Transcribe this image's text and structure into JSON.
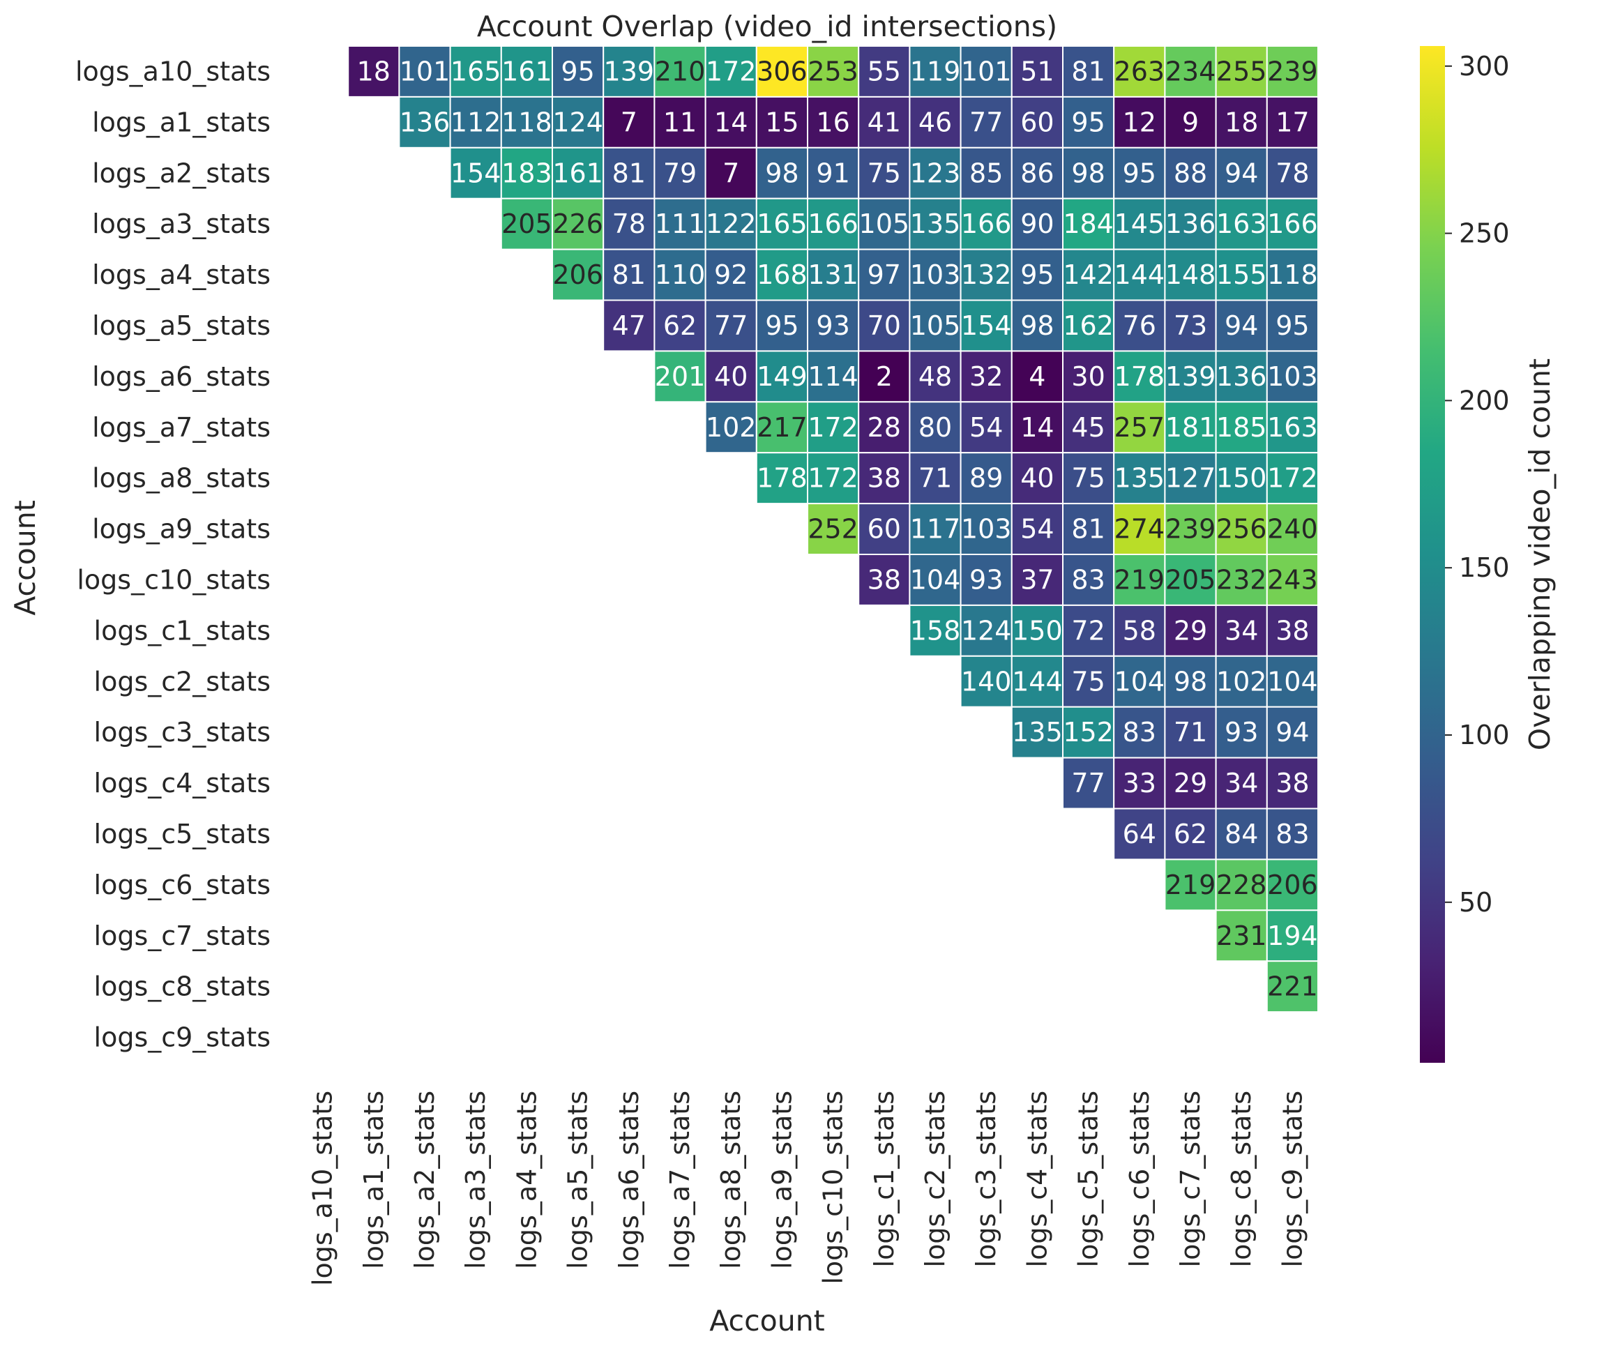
{
  "chart_data": {
    "type": "heatmap",
    "title": "Account Overlap (video_id intersections)",
    "xlabel": "Account",
    "ylabel": "Account",
    "colorbar_label": "Overlapping video_id count",
    "colormap": "viridis",
    "value_range": [
      2,
      306
    ],
    "colorbar_ticks": [
      50,
      100,
      150,
      200,
      250,
      300
    ],
    "mask": "lower triangle and diagonal hidden",
    "labels": [
      "logs_a10_stats",
      "logs_a1_stats",
      "logs_a2_stats",
      "logs_a3_stats",
      "logs_a4_stats",
      "logs_a5_stats",
      "logs_a6_stats",
      "logs_a7_stats",
      "logs_a8_stats",
      "logs_a9_stats",
      "logs_c10_stats",
      "logs_c1_stats",
      "logs_c2_stats",
      "logs_c3_stats",
      "logs_c4_stats",
      "logs_c5_stats",
      "logs_c6_stats",
      "logs_c7_stats",
      "logs_c8_stats",
      "logs_c9_stats"
    ],
    "upper_rows": [
      [
        18,
        101,
        165,
        161,
        95,
        139,
        210,
        172,
        306,
        253,
        55,
        119,
        101,
        51,
        81,
        263,
        234,
        255,
        239
      ],
      [
        136,
        112,
        118,
        124,
        7,
        11,
        14,
        15,
        16,
        41,
        46,
        77,
        60,
        95,
        12,
        9,
        18,
        17
      ],
      [
        154,
        183,
        161,
        81,
        79,
        7,
        98,
        91,
        75,
        123,
        85,
        86,
        98,
        95,
        88,
        94,
        78
      ],
      [
        205,
        226,
        78,
        111,
        122,
        165,
        166,
        105,
        135,
        166,
        90,
        184,
        145,
        136,
        163,
        166
      ],
      [
        206,
        81,
        110,
        92,
        168,
        131,
        97,
        103,
        132,
        95,
        142,
        144,
        148,
        155,
        118
      ],
      [
        47,
        62,
        77,
        95,
        93,
        70,
        105,
        154,
        98,
        162,
        76,
        73,
        94,
        95
      ],
      [
        201,
        40,
        149,
        114,
        2,
        48,
        32,
        4,
        30,
        178,
        139,
        136,
        103
      ],
      [
        102,
        217,
        172,
        28,
        80,
        54,
        14,
        45,
        257,
        181,
        185,
        163
      ],
      [
        178,
        172,
        38,
        71,
        89,
        40,
        75,
        135,
        127,
        150,
        172
      ],
      [
        252,
        60,
        117,
        103,
        54,
        81,
        274,
        239,
        256,
        240
      ],
      [
        38,
        104,
        93,
        37,
        83,
        219,
        205,
        232,
        243
      ],
      [
        158,
        124,
        150,
        72,
        58,
        29,
        34,
        38
      ],
      [
        140,
        144,
        75,
        104,
        98,
        102,
        104
      ],
      [
        135,
        152,
        83,
        71,
        93,
        94
      ],
      [
        77,
        33,
        29,
        34,
        38
      ],
      [
        64,
        62,
        84,
        83
      ],
      [
        219,
        228,
        206
      ],
      [
        231,
        194
      ],
      [
        221
      ],
      []
    ]
  }
}
